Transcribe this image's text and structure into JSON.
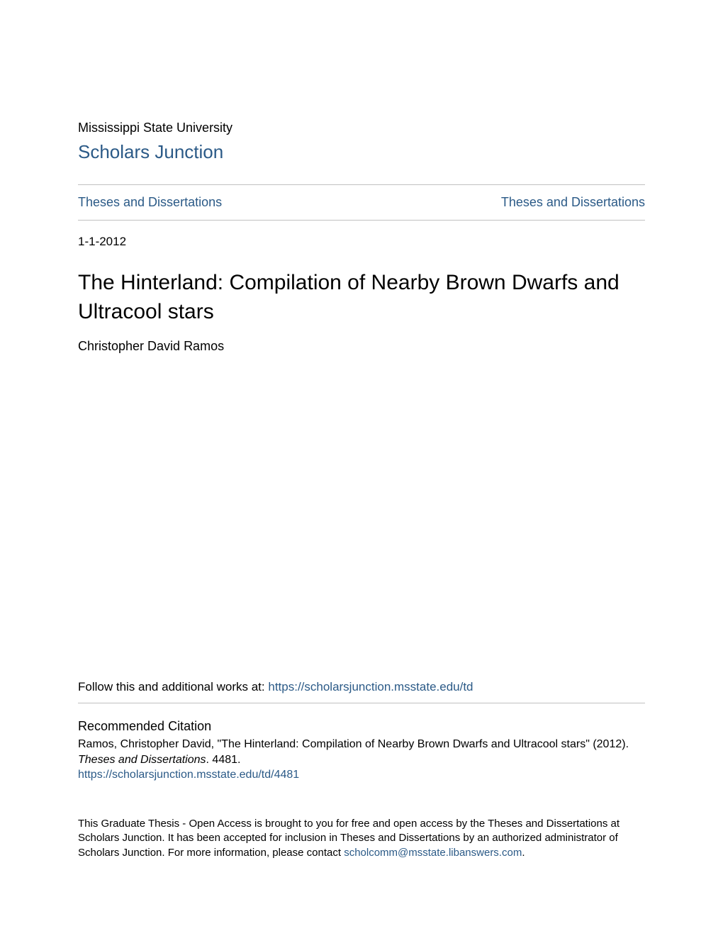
{
  "header": {
    "institution": "Mississippi State University",
    "repository_name": "Scholars Junction"
  },
  "nav": {
    "left_link": "Theses and Dissertations",
    "right_link": "Theses and Dissertations"
  },
  "meta": {
    "date": "1-1-2012"
  },
  "document": {
    "title": "The Hinterland: Compilation of Nearby Brown Dwarfs and Ultracool stars",
    "author": "Christopher David Ramos"
  },
  "follow": {
    "prefix": "Follow this and additional works at: ",
    "url": "https://scholarsjunction.msstate.edu/td"
  },
  "citation": {
    "heading": "Recommended Citation",
    "text_part1": "Ramos, Christopher David, \"The Hinterland: Compilation of Nearby Brown Dwarfs and Ultracool stars\" (2012). ",
    "series_italic": "Theses and Dissertations",
    "text_part2": ". 4481.",
    "url": "https://scholarsjunction.msstate.edu/td/4481"
  },
  "footer": {
    "text_part1": "This Graduate Thesis - Open Access is brought to you for free and open access by the Theses and Dissertations at Scholars Junction. It has been accepted for inclusion in Theses and Dissertations by an authorized administrator of Scholars Junction. For more information, please contact ",
    "contact_link": "scholcomm@msstate.libanswers.com",
    "text_part2": "."
  },
  "colors": {
    "link_color": "#2b5a87",
    "text_color": "#000000",
    "background": "#ffffff",
    "divider_color": "#c0c0c0"
  },
  "typography": {
    "institution_fontsize": 18,
    "repo_fontsize": 26,
    "nav_fontsize": 18,
    "date_fontsize": 17,
    "title_fontsize": 30,
    "author_fontsize": 18,
    "follow_fontsize": 17,
    "citation_heading_fontsize": 18,
    "citation_text_fontsize": 16,
    "footer_fontsize": 15
  }
}
